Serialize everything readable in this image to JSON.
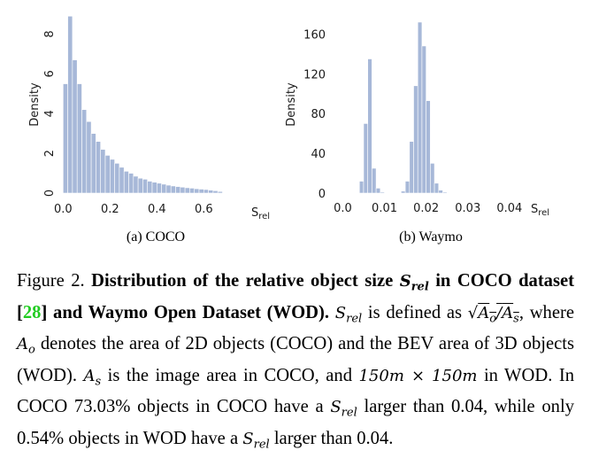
{
  "chart_data": [
    {
      "type": "bar",
      "subcaption": "(a) COCO",
      "ylabel": "Density",
      "xlabel": "S_rel",
      "xlim": [
        -0.02,
        0.78
      ],
      "ylim": [
        0,
        9
      ],
      "xticks": [
        "0.0",
        "0.2",
        "0.4",
        "0.6"
      ],
      "yticks": [
        "0",
        "2",
        "4",
        "6",
        "8"
      ],
      "bin_width": 0.02,
      "x": [
        0.0,
        0.02,
        0.04,
        0.06,
        0.08,
        0.1,
        0.12,
        0.14,
        0.16,
        0.18,
        0.2,
        0.22,
        0.24,
        0.26,
        0.28,
        0.3,
        0.32,
        0.34,
        0.36,
        0.38,
        0.4,
        0.42,
        0.44,
        0.46,
        0.48,
        0.5,
        0.52,
        0.54,
        0.56,
        0.58,
        0.6,
        0.62,
        0.64,
        0.66
      ],
      "values": [
        5.5,
        8.9,
        6.7,
        5.5,
        4.2,
        3.6,
        3.0,
        2.6,
        2.2,
        1.9,
        1.7,
        1.5,
        1.3,
        1.1,
        1.0,
        0.85,
        0.75,
        0.7,
        0.6,
        0.55,
        0.5,
        0.45,
        0.4,
        0.36,
        0.33,
        0.3,
        0.27,
        0.25,
        0.22,
        0.2,
        0.18,
        0.15,
        0.12,
        0.08
      ]
    },
    {
      "type": "bar",
      "subcaption": "(b) Waymo",
      "ylabel": "Density",
      "xlabel": "S_rel",
      "xlim": [
        -0.002,
        0.043
      ],
      "ylim": [
        0,
        180
      ],
      "xticks": [
        "0.0",
        "0.01",
        "0.02",
        "0.03",
        "0.04"
      ],
      "yticks": [
        "0",
        "40",
        "80",
        "120",
        "160"
      ],
      "bin_width": 0.001,
      "x": [
        0.004,
        0.005,
        0.006,
        0.007,
        0.008,
        0.009,
        0.01,
        0.011,
        0.012,
        0.013,
        0.014,
        0.015,
        0.016,
        0.017,
        0.018,
        0.019,
        0.02,
        0.021,
        0.022,
        0.023,
        0.024,
        0.025,
        0.026,
        0.027,
        0.028
      ],
      "values": [
        12,
        70,
        135,
        25,
        5,
        1,
        0,
        0,
        0,
        0,
        2,
        12,
        52,
        108,
        172,
        148,
        93,
        30,
        10,
        3,
        1,
        0,
        0,
        0,
        0
      ]
    }
  ],
  "figure_label": "Figure 2.",
  "caption": {
    "bold_prefix": "Distribution of the relative object size ",
    "bold_s": "S",
    "bold_sub": "rel",
    "bold_mid": " in COCO dataset [",
    "ref": "28",
    "bold_tail": "] and Waymo Open Dataset (WOD).",
    "s": "S",
    "s_sub": "rel",
    "t1": " is defined as ",
    "sqrt_a": "A",
    "sqrt_a_sub": "o",
    "sqrt_slash": "/",
    "sqrt_b": "A",
    "sqrt_b_sub": "s",
    "t2": ", where ",
    "ao": "A",
    "ao_sub": "o",
    "t3": " denotes the area of 2D objects (COCO) and the BEV area of 3D objects (WOD). ",
    "as": "A",
    "as_sub": "s",
    "t4": " is the image area in COCO, and ",
    "m1": "150m × 150m",
    "t5": " in WOD. In COCO 73.03% objects in COCO have a ",
    "s2": "S",
    "s2_sub": "rel",
    "t6": " larger than 0.04, while only 0.54% objects in WOD have a ",
    "s3": "S",
    "s3_sub": "rel",
    "t7": " larger than 0.04."
  },
  "colors": {
    "bar": "#a7b8d8",
    "bar_edge": "#ffffff",
    "ref": "#22cc22"
  }
}
